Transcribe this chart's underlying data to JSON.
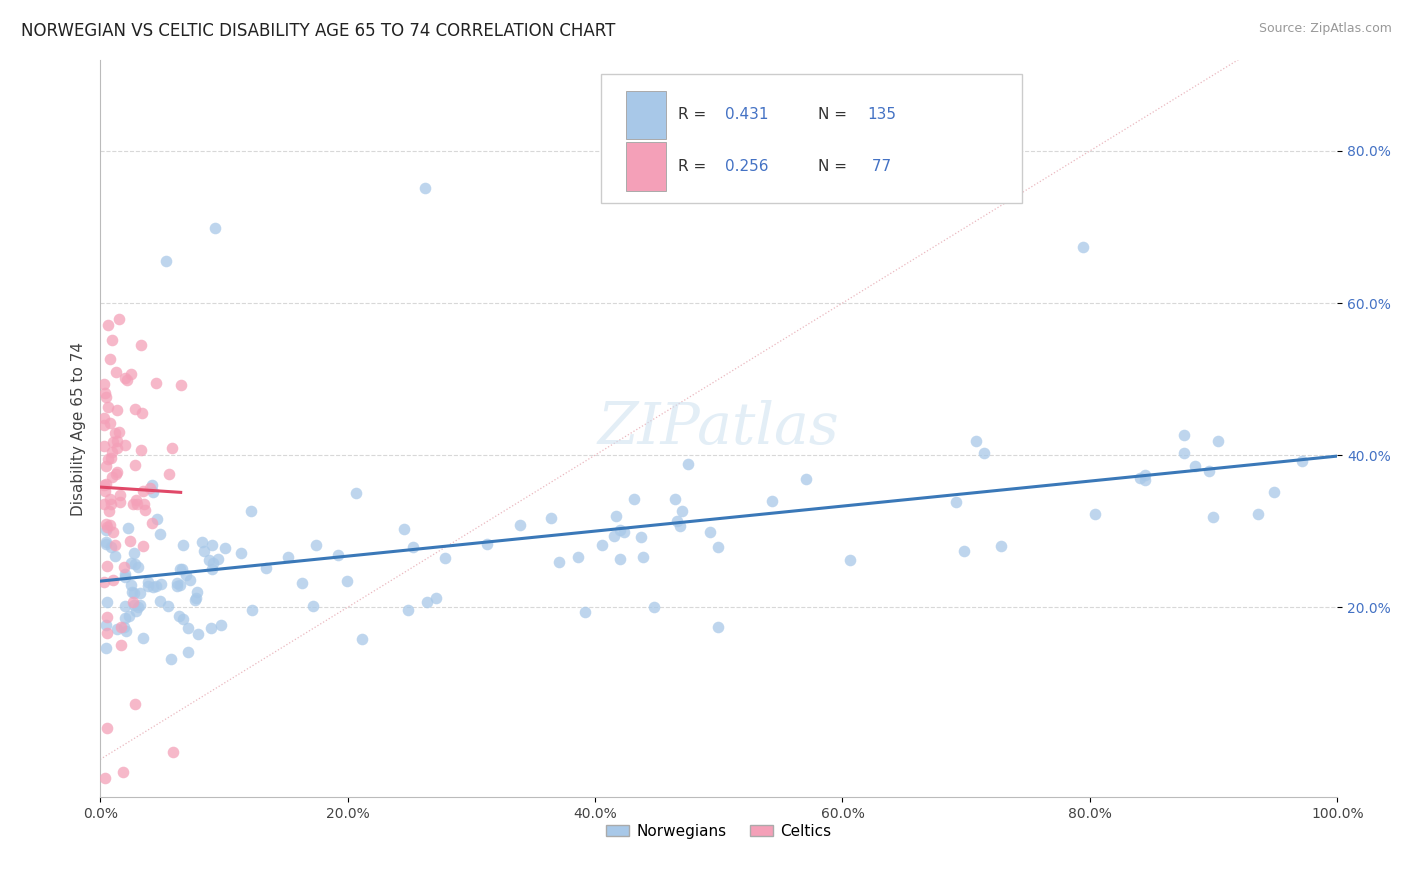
{
  "title": "NORWEGIAN VS CELTIC DISABILITY AGE 65 TO 74 CORRELATION CHART",
  "source_text": "Source: ZipAtlas.com",
  "ylabel": "Disability Age 65 to 74",
  "xlim": [
    0.0,
    1.0
  ],
  "ylim": [
    -0.05,
    0.92
  ],
  "xticks": [
    0.0,
    0.2,
    0.4,
    0.6,
    0.8,
    1.0
  ],
  "xticklabels": [
    "0.0%",
    "20.0%",
    "40.0%",
    "60.0%",
    "80.0%",
    "100.0%"
  ],
  "yticks": [
    0.2,
    0.4,
    0.6,
    0.8
  ],
  "yticklabels": [
    "20.0%",
    "40.0%",
    "60.0%",
    "80.0%"
  ],
  "color_norwegian": "#a8c8e8",
  "color_celtic": "#f4a0b8",
  "color_line_norwegian": "#3a78b8",
  "color_line_celtic": "#e04868",
  "color_diagonal": "#e8b0b8",
  "background_color": "#ffffff",
  "grid_color": "#d8d8d8",
  "title_fontsize": 12,
  "axis_label_fontsize": 11,
  "tick_fontsize": 10,
  "legend_color": "#4472c4",
  "watermark_color": "#cce0f0"
}
